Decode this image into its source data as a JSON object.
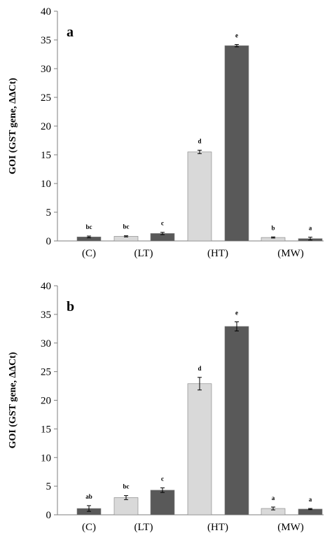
{
  "colors": {
    "light_bar": "#d9d9d9",
    "dark_bar": "#595959",
    "axis": "#7f7f7f"
  },
  "chart_data": [
    {
      "type": "bar",
      "panel_label": "a",
      "ylabel": "GOI (GST gene, ΔΔCt)",
      "ylim": [
        0,
        40
      ],
      "yticks": [
        "0",
        "5",
        "10",
        "15",
        "20",
        "25",
        "30",
        "35",
        "40"
      ],
      "grid": false,
      "categories": [
        "(C)",
        "(LT)",
        "(HT)",
        "(MW)"
      ],
      "bars": [
        {
          "category": "(C)",
          "shade": "dark",
          "value": 0.7,
          "error": 0.15,
          "letter": "bc"
        },
        {
          "category": "(LT)",
          "shade": "light",
          "value": 0.8,
          "error": 0.1,
          "letter": "bc"
        },
        {
          "category": "(LT)",
          "shade": "dark",
          "value": 1.3,
          "error": 0.2,
          "letter": "c"
        },
        {
          "category": "(HT)",
          "shade": "light",
          "value": 15.5,
          "error": 0.3,
          "letter": "d"
        },
        {
          "category": "(HT)",
          "shade": "dark",
          "value": 34.0,
          "error": 0.2,
          "letter": "e"
        },
        {
          "category": "(MW)",
          "shade": "light",
          "value": 0.6,
          "error": 0.1,
          "letter": "b"
        },
        {
          "category": "(MW)",
          "shade": "dark",
          "value": 0.4,
          "error": 0.25,
          "letter": "a"
        }
      ]
    },
    {
      "type": "bar",
      "panel_label": "b",
      "ylabel": "GOI (GST gene, ΔΔCt)",
      "ylim": [
        0,
        40
      ],
      "yticks": [
        "0",
        "5",
        "10",
        "15",
        "20",
        "25",
        "30",
        "35",
        "40"
      ],
      "grid": false,
      "categories": [
        "(C)",
        "(LT)",
        "(HT)",
        "(MW)"
      ],
      "bars": [
        {
          "category": "(C)",
          "shade": "dark",
          "value": 1.1,
          "error": 0.5,
          "letter": "ab"
        },
        {
          "category": "(LT)",
          "shade": "light",
          "value": 3.0,
          "error": 0.35,
          "letter": "bc"
        },
        {
          "category": "(LT)",
          "shade": "dark",
          "value": 4.3,
          "error": 0.4,
          "letter": "c"
        },
        {
          "category": "(HT)",
          "shade": "light",
          "value": 22.9,
          "error": 1.1,
          "letter": "d"
        },
        {
          "category": "(HT)",
          "shade": "dark",
          "value": 32.9,
          "error": 0.8,
          "letter": "e"
        },
        {
          "category": "(MW)",
          "shade": "light",
          "value": 1.1,
          "error": 0.25,
          "letter": "a"
        },
        {
          "category": "(MW)",
          "shade": "dark",
          "value": 1.0,
          "error": 0.1,
          "letter": "a"
        }
      ]
    }
  ]
}
